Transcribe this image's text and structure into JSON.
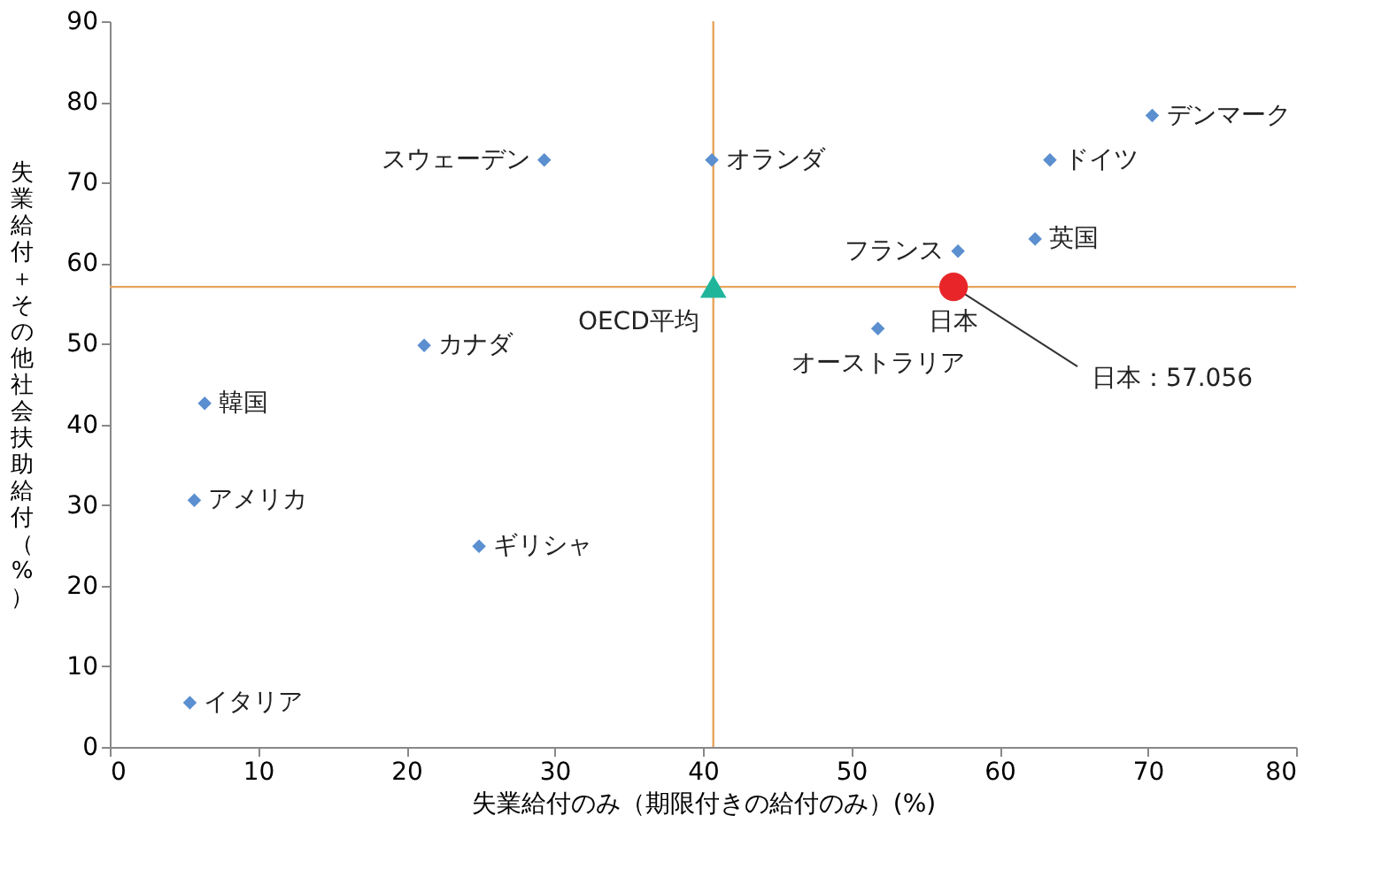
{
  "chart_data": {
    "type": "scatter",
    "xlabel": "失業給付のみ（期限付きの給付のみ）(%)",
    "ylabel": "失業給付＋その他社会扶助給付（%）",
    "xlim": [
      0,
      80
    ],
    "xticks": [
      0,
      10,
      20,
      30,
      40,
      50,
      60,
      70,
      80
    ],
    "ylim": [
      0,
      90
    ],
    "yticks": [
      0,
      10,
      20,
      30,
      40,
      50,
      60,
      70,
      80,
      90
    ],
    "grid": false,
    "ref_lines": [
      {
        "axis": "x",
        "value": 40.7,
        "color": "#e8a45c"
      },
      {
        "axis": "y",
        "value": 57.056,
        "color": "#e8a45c"
      }
    ],
    "annotations": [
      {
        "text": "日本：57.056",
        "x": 56.9,
        "y": 57.056
      }
    ],
    "series": [
      {
        "name": "デンマーク",
        "color": "#5b8fd0",
        "marker": "diamond",
        "x": [
          70.3
        ],
        "values": [
          78.3
        ]
      },
      {
        "name": "ドイツ",
        "color": "#5b8fd0",
        "marker": "diamond",
        "x": [
          63.4
        ],
        "values": [
          72.8
        ]
      },
      {
        "name": "英国",
        "color": "#5b8fd0",
        "marker": "diamond",
        "x": [
          62.4
        ],
        "values": [
          63.0
        ]
      },
      {
        "name": "フランス",
        "color": "#5b8fd0",
        "marker": "diamond",
        "x": [
          57.2
        ],
        "values": [
          61.5
        ]
      },
      {
        "name": "日本",
        "color": "#e8262a",
        "marker": "circle",
        "x": [
          56.9
        ],
        "values": [
          57.056
        ]
      },
      {
        "name": "オーストラリア",
        "color": "#5b8fd0",
        "marker": "diamond",
        "x": [
          51.8
        ],
        "values": [
          51.9
        ]
      },
      {
        "name": "オランダ",
        "color": "#5b8fd0",
        "marker": "diamond",
        "x": [
          40.6
        ],
        "values": [
          72.8
        ]
      },
      {
        "name": "スウェーデン",
        "color": "#5b8fd0",
        "marker": "diamond",
        "x": [
          29.3
        ],
        "values": [
          72.8
        ]
      },
      {
        "name": "OECD平均",
        "color": "#1fb59b",
        "marker": "triangle",
        "x": [
          40.7
        ],
        "values": [
          57.1
        ]
      },
      {
        "name": "カナダ",
        "color": "#5b8fd0",
        "marker": "diamond",
        "x": [
          21.2
        ],
        "values": [
          49.8
        ]
      },
      {
        "name": "韓国",
        "color": "#5b8fd0",
        "marker": "diamond",
        "x": [
          6.4
        ],
        "values": [
          42.6
        ]
      },
      {
        "name": "アメリカ",
        "color": "#5b8fd0",
        "marker": "diamond",
        "x": [
          5.7
        ],
        "values": [
          30.6
        ]
      },
      {
        "name": "ギリシャ",
        "color": "#5b8fd0",
        "marker": "diamond",
        "x": [
          24.9
        ],
        "values": [
          24.9
        ]
      },
      {
        "name": "イタリア",
        "color": "#5b8fd0",
        "marker": "diamond",
        "x": [
          5.4
        ],
        "values": [
          5.5
        ]
      }
    ]
  }
}
